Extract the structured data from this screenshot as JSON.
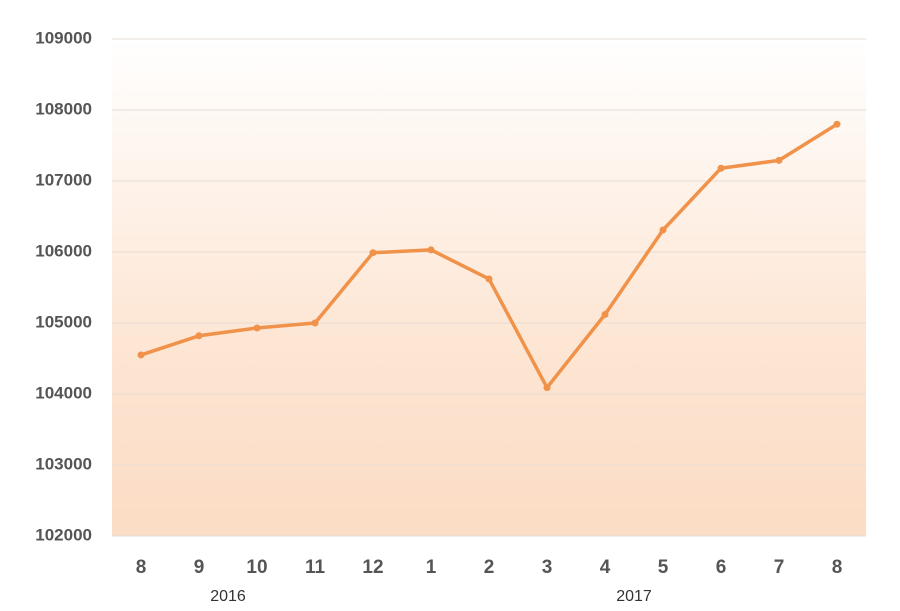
{
  "chart_data": {
    "type": "line",
    "categories": [
      "8",
      "9",
      "10",
      "11",
      "12",
      "1",
      "2",
      "3",
      "4",
      "5",
      "6",
      "7",
      "8"
    ],
    "year_labels": [
      "2016",
      "2017"
    ],
    "series": [
      {
        "color": "#f0924a",
        "values": [
          104550,
          104820,
          104930,
          105000,
          105990,
          106030,
          105620,
          104090,
          105120,
          106310,
          107180,
          107290,
          107800
        ]
      }
    ],
    "ylim": [
      102000,
      109000
    ],
    "yticks": [
      102000,
      103000,
      104000,
      105000,
      106000,
      107000,
      108000,
      109000
    ],
    "grid": true
  }
}
